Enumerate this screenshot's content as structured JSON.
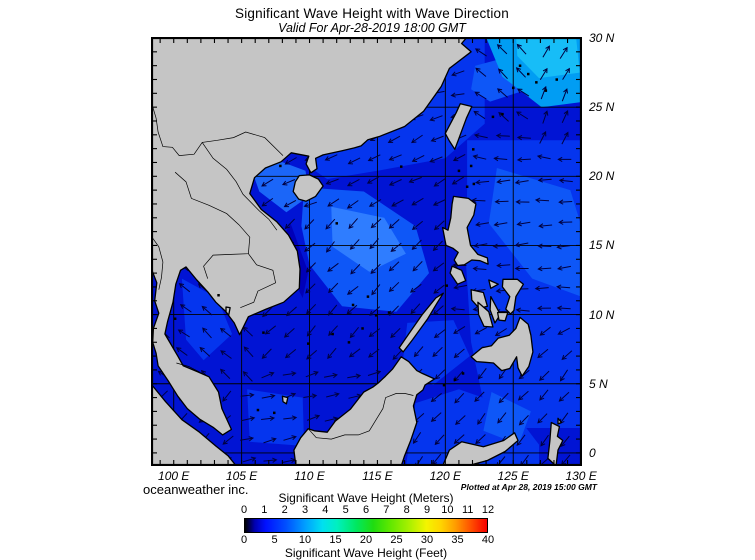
{
  "header": {
    "title": "Significant Wave Height with Wave Direction",
    "subtitle": "Valid For Apr-28-2019 18:00 GMT"
  },
  "footer": {
    "credit": "oceanweather inc.",
    "plotted_at": "Plotted at Apr 28, 2019 15:00 GMT"
  },
  "map": {
    "lon_labels": [
      {
        "deg": 100,
        "label": "100 E"
      },
      {
        "deg": 105,
        "label": "105 E"
      },
      {
        "deg": 110,
        "label": "110 E"
      },
      {
        "deg": 115,
        "label": "115 E"
      },
      {
        "deg": 120,
        "label": "120 E"
      },
      {
        "deg": 125,
        "label": "125 E"
      },
      {
        "deg": 130,
        "label": "130 E"
      }
    ],
    "lat_labels": [
      {
        "deg": 0,
        "label": "0"
      },
      {
        "deg": 5,
        "label": "5 N"
      },
      {
        "deg": 10,
        "label": "10 N"
      },
      {
        "deg": 15,
        "label": "15 N"
      },
      {
        "deg": 20,
        "label": "20 N"
      },
      {
        "deg": 25,
        "label": "25 N"
      },
      {
        "deg": 30,
        "label": "30 N"
      }
    ],
    "bounds": {
      "lon_min": 98.4,
      "lon_max": 130.0,
      "lat_min": -0.94,
      "lat_max": 30.0
    },
    "grid_step_deg": 5,
    "minor_tick_step_deg": 1
  },
  "legend": {
    "meters_title": "Significant Wave Height (Meters)",
    "meters_ticks": [
      "0",
      "1",
      "2",
      "3",
      "4",
      "5",
      "6",
      "7",
      "8",
      "9",
      "10",
      "11",
      "12"
    ],
    "feet_title": "Significant Wave Height (Feet)",
    "feet_ticks": [
      "0",
      "5",
      "10",
      "15",
      "20",
      "25",
      "30",
      "35",
      "40"
    ],
    "gradient_stops": [
      [
        0,
        "#000000"
      ],
      [
        0.04,
        "#0000b0"
      ],
      [
        0.085,
        "#0010ff"
      ],
      [
        0.17,
        "#0050ff"
      ],
      [
        0.25,
        "#00a0ff"
      ],
      [
        0.32,
        "#00e0f0"
      ],
      [
        0.38,
        "#00f0c0"
      ],
      [
        0.46,
        "#00e860"
      ],
      [
        0.53,
        "#20dc10"
      ],
      [
        0.6,
        "#60e800"
      ],
      [
        0.68,
        "#aaf000"
      ],
      [
        0.75,
        "#f4f400"
      ],
      [
        0.81,
        "#ffd400"
      ],
      [
        0.87,
        "#ff9c00"
      ],
      [
        0.93,
        "#ff5400"
      ],
      [
        1,
        "#f60000"
      ]
    ]
  },
  "colors": {
    "land": "#c5c5c5",
    "coastline": "#000000",
    "ocean_base": "#0114d4",
    "ocean_dark": "#0000b8",
    "ocean_medium": "#0535ee",
    "ocean_light": "#0e57f7",
    "ocean_lighter": "#2f7dff",
    "ocean_cyan": "#019df3",
    "ocean_cyan_bright": "#17bdf7",
    "gulf_tonkin_light": "#1b66f8",
    "arrow": "#000040",
    "grid": "#000000"
  }
}
